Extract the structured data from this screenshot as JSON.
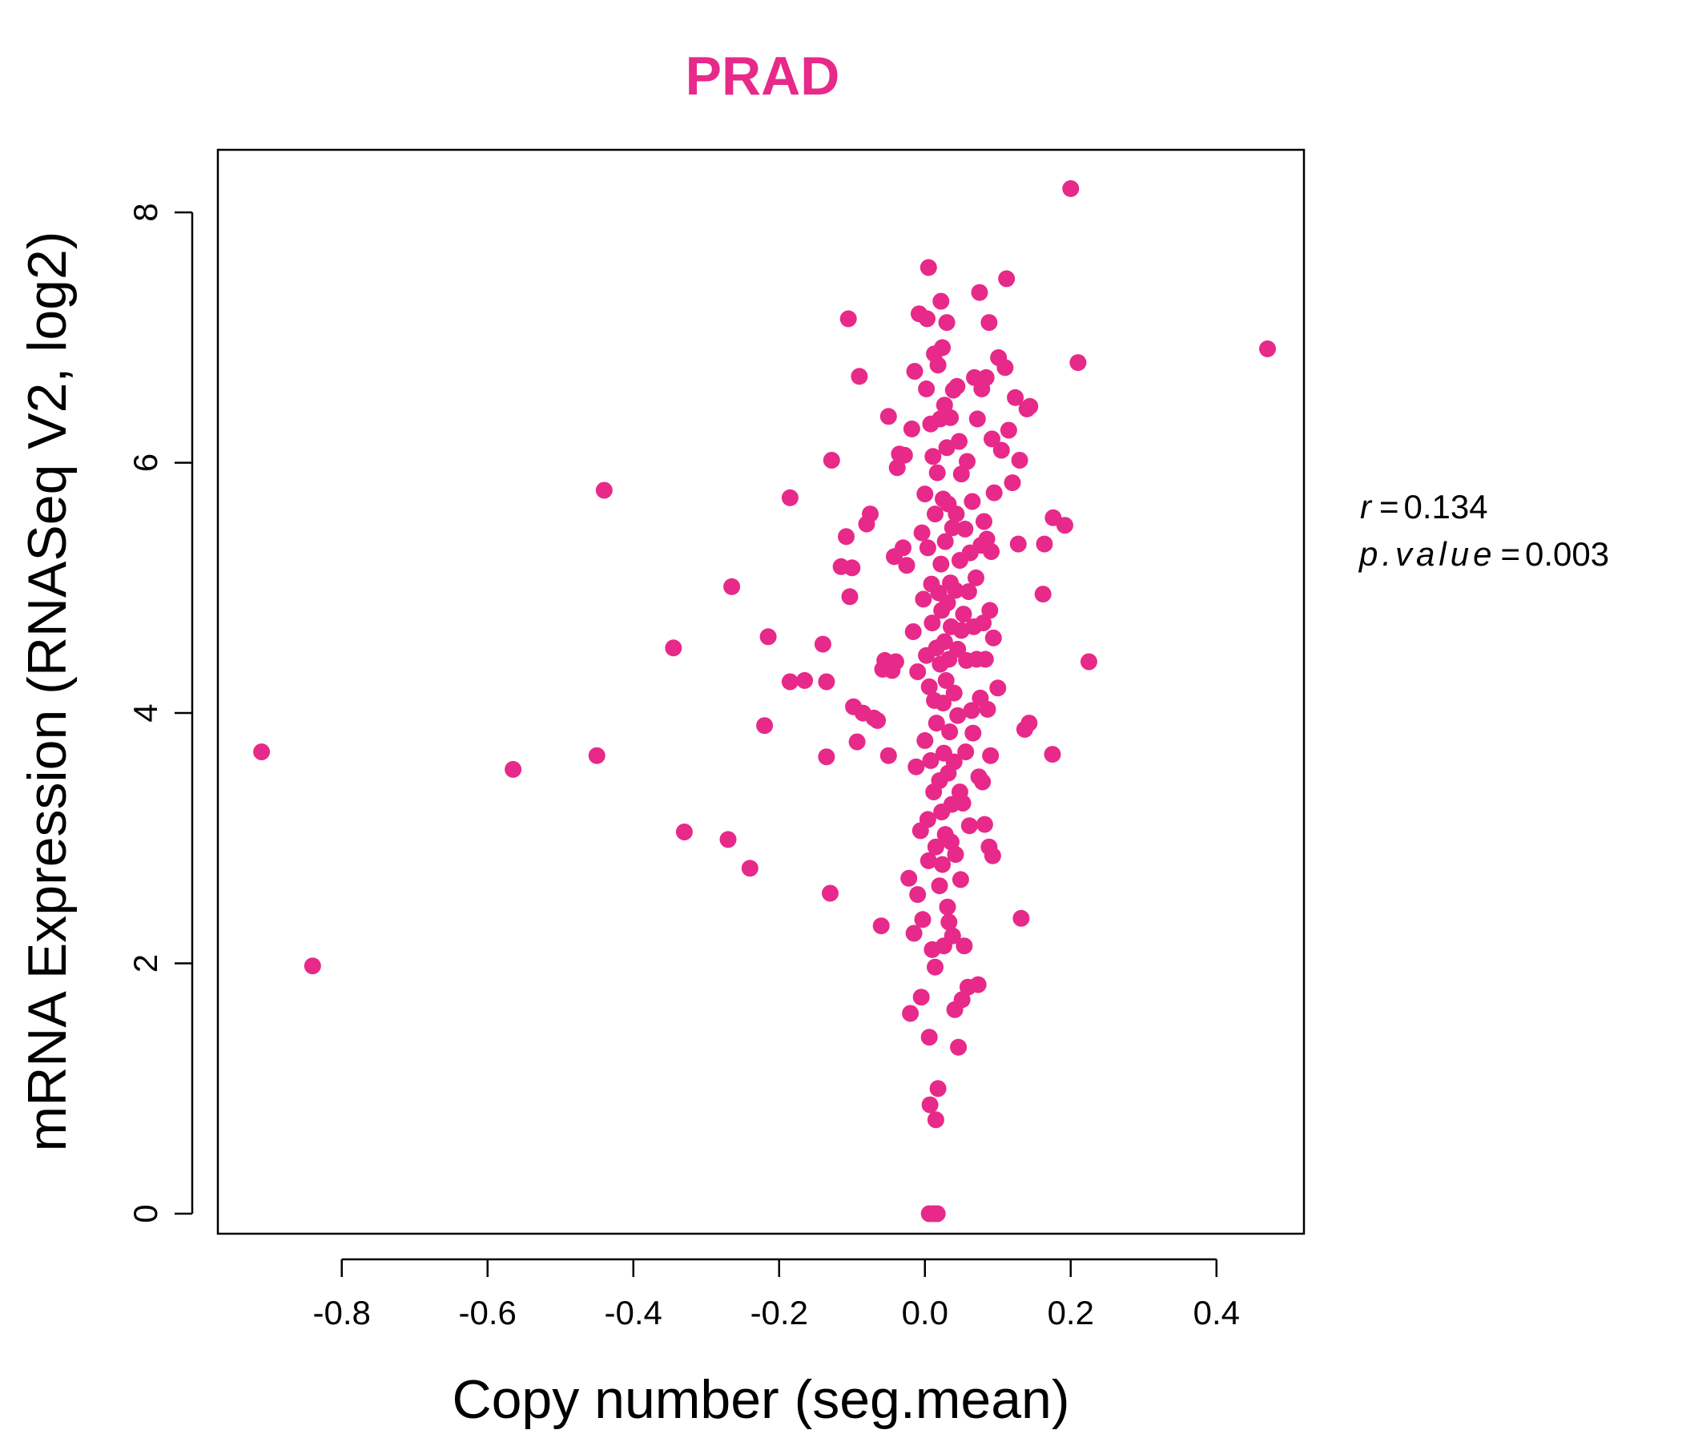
{
  "chart_data": {
    "type": "scatter",
    "title": "PRAD",
    "xlabel": "Copy number (seg.mean)",
    "ylabel": "mRNA Expression (RNASeq V2, log2)",
    "xlim": [
      -0.97,
      0.52
    ],
    "ylim": [
      -0.16,
      8.5
    ],
    "x_ticks": [
      -0.8,
      -0.6,
      -0.4,
      -0.2,
      0.0,
      0.2,
      0.4
    ],
    "x_tick_labels": [
      "-0.8",
      "-0.6",
      "-0.4",
      "-0.2",
      "0.0",
      "0.2",
      "0.4"
    ],
    "y_ticks": [
      0,
      2,
      4,
      6,
      8
    ],
    "y_tick_labels": [
      "0",
      "2",
      "4",
      "6",
      "8"
    ],
    "grid": false,
    "point_color": "#e7298a",
    "stats": {
      "r_label": "r",
      "r_value": "0.134",
      "p_label": "p.value",
      "p_value": "0.003"
    },
    "points": [
      [
        -0.91,
        3.69
      ],
      [
        -0.84,
        1.98
      ],
      [
        -0.565,
        3.55
      ],
      [
        -0.45,
        3.66
      ],
      [
        -0.44,
        5.78
      ],
      [
        -0.345,
        4.52
      ],
      [
        -0.33,
        3.05
      ],
      [
        -0.27,
        2.99
      ],
      [
        -0.265,
        5.01
      ],
      [
        -0.24,
        2.76
      ],
      [
        -0.22,
        3.9
      ],
      [
        -0.215,
        4.61
      ],
      [
        -0.185,
        5.72
      ],
      [
        -0.185,
        4.25
      ],
      [
        -0.165,
        4.26
      ],
      [
        -0.14,
        4.55
      ],
      [
        -0.135,
        3.65
      ],
      [
        -0.135,
        4.25
      ],
      [
        -0.13,
        2.56
      ],
      [
        -0.128,
        6.02
      ],
      [
        -0.115,
        5.17
      ],
      [
        -0.108,
        5.41
      ],
      [
        -0.105,
        7.15
      ],
      [
        -0.103,
        4.93
      ],
      [
        -0.1,
        5.16
      ],
      [
        -0.098,
        4.05
      ],
      [
        -0.093,
        3.77
      ],
      [
        -0.09,
        6.69
      ],
      [
        -0.085,
        4.0
      ],
      [
        -0.08,
        5.51
      ],
      [
        -0.075,
        5.59
      ],
      [
        -0.07,
        3.96
      ],
      [
        -0.065,
        3.94
      ],
      [
        -0.06,
        2.3
      ],
      [
        -0.058,
        4.35
      ],
      [
        -0.055,
        4.42
      ],
      [
        -0.05,
        6.37
      ],
      [
        -0.05,
        3.66
      ],
      [
        -0.045,
        4.34
      ],
      [
        -0.042,
        5.25
      ],
      [
        -0.04,
        4.41
      ],
      [
        -0.038,
        5.96
      ],
      [
        -0.035,
        6.07
      ],
      [
        -0.03,
        5.32
      ],
      [
        -0.028,
        6.06
      ],
      [
        -0.025,
        5.18
      ],
      [
        -0.022,
        2.68
      ],
      [
        -0.02,
        1.6
      ],
      [
        -0.018,
        6.27
      ],
      [
        -0.016,
        4.65
      ],
      [
        -0.015,
        2.24
      ],
      [
        -0.014,
        6.73
      ],
      [
        -0.012,
        3.57
      ],
      [
        -0.01,
        4.33
      ],
      [
        -0.01,
        2.55
      ],
      [
        -0.008,
        7.19
      ],
      [
        -0.006,
        3.06
      ],
      [
        -0.005,
        1.73
      ],
      [
        -0.004,
        5.44
      ],
      [
        -0.003,
        2.35
      ],
      [
        -0.002,
        4.91
      ],
      [
        0.0,
        5.75
      ],
      [
        0.0,
        3.78
      ],
      [
        0.002,
        6.59
      ],
      [
        0.002,
        4.46
      ],
      [
        0.003,
        7.15
      ],
      [
        0.004,
        5.32
      ],
      [
        0.004,
        3.15
      ],
      [
        0.005,
        2.82
      ],
      [
        0.005,
        7.56
      ],
      [
        0.006,
        4.21
      ],
      [
        0.006,
        1.41
      ],
      [
        0.006,
        0.0
      ],
      [
        0.007,
        0.87
      ],
      [
        0.008,
        6.31
      ],
      [
        0.008,
        3.62
      ],
      [
        0.009,
        5.03
      ],
      [
        0.01,
        2.11
      ],
      [
        0.01,
        4.72
      ],
      [
        0.011,
        6.05
      ],
      [
        0.012,
        3.37
      ],
      [
        0.012,
        0.0
      ],
      [
        0.013,
        4.1
      ],
      [
        0.013,
        6.87
      ],
      [
        0.014,
        1.97
      ],
      [
        0.014,
        5.59
      ],
      [
        0.015,
        2.93
      ],
      [
        0.015,
        0.75
      ],
      [
        0.016,
        4.52
      ],
      [
        0.016,
        3.92
      ],
      [
        0.017,
        0.0
      ],
      [
        0.017,
        5.92
      ],
      [
        0.018,
        6.78
      ],
      [
        0.018,
        1.0
      ],
      [
        0.019,
        4.96
      ],
      [
        0.02,
        3.46
      ],
      [
        0.02,
        2.62
      ],
      [
        0.021,
        6.35
      ],
      [
        0.021,
        4.39
      ],
      [
        0.022,
        7.29
      ],
      [
        0.022,
        5.19
      ],
      [
        0.023,
        3.21
      ],
      [
        0.023,
        4.82
      ],
      [
        0.024,
        2.79
      ],
      [
        0.024,
        6.92
      ],
      [
        0.025,
        4.08
      ],
      [
        0.025,
        5.71
      ],
      [
        0.026,
        3.68
      ],
      [
        0.026,
        2.14
      ],
      [
        0.027,
        6.46
      ],
      [
        0.027,
        4.57
      ],
      [
        0.028,
        5.37
      ],
      [
        0.028,
        3.03
      ],
      [
        0.029,
        4.26
      ],
      [
        0.03,
        7.12
      ],
      [
        0.03,
        6.12
      ],
      [
        0.031,
        2.45
      ],
      [
        0.031,
        4.88
      ],
      [
        0.032,
        3.52
      ],
      [
        0.032,
        5.67
      ],
      [
        0.033,
        2.33
      ],
      [
        0.033,
        4.43
      ],
      [
        0.034,
        3.85
      ],
      [
        0.035,
        6.36
      ],
      [
        0.035,
        5.04
      ],
      [
        0.036,
        2.97
      ],
      [
        0.036,
        4.69
      ],
      [
        0.037,
        3.27
      ],
      [
        0.038,
        5.48
      ],
      [
        0.038,
        2.22
      ],
      [
        0.039,
        6.58
      ],
      [
        0.04,
        4.16
      ],
      [
        0.04,
        3.61
      ],
      [
        0.041,
        1.63
      ],
      [
        0.042,
        4.98
      ],
      [
        0.042,
        2.87
      ],
      [
        0.043,
        5.59
      ],
      [
        0.044,
        6.61
      ],
      [
        0.045,
        3.98
      ],
      [
        0.045,
        4.51
      ],
      [
        0.046,
        1.33
      ],
      [
        0.047,
        6.17
      ],
      [
        0.048,
        5.22
      ],
      [
        0.048,
        3.37
      ],
      [
        0.049,
        2.67
      ],
      [
        0.05,
        4.66
      ],
      [
        0.05,
        5.91
      ],
      [
        0.051,
        1.71
      ],
      [
        0.052,
        3.28
      ],
      [
        0.053,
        4.79
      ],
      [
        0.054,
        2.14
      ],
      [
        0.055,
        5.47
      ],
      [
        0.056,
        3.69
      ],
      [
        0.057,
        4.42
      ],
      [
        0.058,
        6.01
      ],
      [
        0.059,
        1.81
      ],
      [
        0.06,
        4.97
      ],
      [
        0.061,
        3.1
      ],
      [
        0.062,
        5.28
      ],
      [
        0.064,
        4.02
      ],
      [
        0.065,
        5.69
      ],
      [
        0.066,
        3.84
      ],
      [
        0.067,
        4.69
      ],
      [
        0.068,
        6.68
      ],
      [
        0.07,
        5.08
      ],
      [
        0.071,
        4.43
      ],
      [
        0.072,
        6.35
      ],
      [
        0.073,
        1.83
      ],
      [
        0.074,
        3.49
      ],
      [
        0.075,
        7.36
      ],
      [
        0.076,
        4.12
      ],
      [
        0.077,
        5.34
      ],
      [
        0.078,
        6.59
      ],
      [
        0.079,
        3.45
      ],
      [
        0.08,
        4.72
      ],
      [
        0.081,
        5.53
      ],
      [
        0.082,
        3.11
      ],
      [
        0.083,
        4.43
      ],
      [
        0.084,
        6.68
      ],
      [
        0.085,
        5.39
      ],
      [
        0.086,
        4.03
      ],
      [
        0.088,
        2.93
      ],
      [
        0.088,
        7.12
      ],
      [
        0.089,
        4.82
      ],
      [
        0.09,
        3.66
      ],
      [
        0.091,
        5.29
      ],
      [
        0.092,
        6.19
      ],
      [
        0.093,
        2.86
      ],
      [
        0.094,
        4.6
      ],
      [
        0.095,
        5.76
      ],
      [
        0.1,
        4.2
      ],
      [
        0.101,
        6.84
      ],
      [
        0.105,
        6.1
      ],
      [
        0.11,
        6.76
      ],
      [
        0.112,
        7.47
      ],
      [
        0.115,
        6.26
      ],
      [
        0.12,
        5.84
      ],
      [
        0.124,
        6.52
      ],
      [
        0.128,
        5.35
      ],
      [
        0.13,
        6.02
      ],
      [
        0.132,
        2.36
      ],
      [
        0.137,
        3.87
      ],
      [
        0.14,
        6.43
      ],
      [
        0.143,
        3.92
      ],
      [
        0.144,
        6.45
      ],
      [
        0.162,
        4.95
      ],
      [
        0.164,
        5.35
      ],
      [
        0.175,
        3.67
      ],
      [
        0.176,
        5.56
      ],
      [
        0.192,
        5.5
      ],
      [
        0.2,
        8.19
      ],
      [
        0.21,
        6.8
      ],
      [
        0.225,
        4.41
      ],
      [
        0.47,
        6.91
      ]
    ]
  }
}
